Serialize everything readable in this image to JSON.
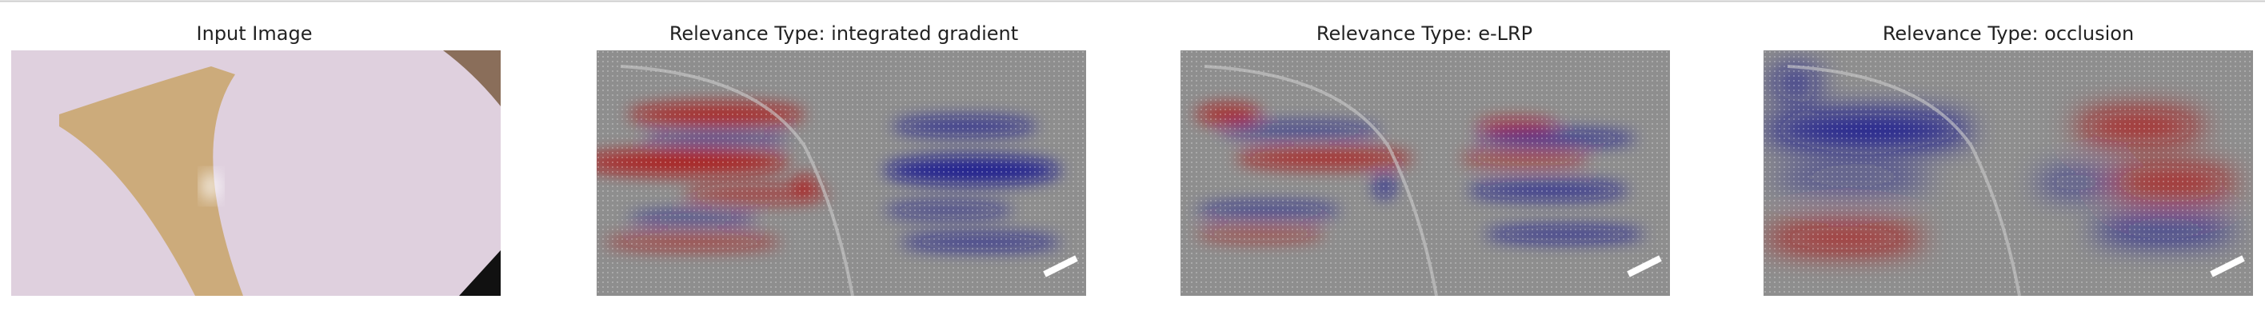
{
  "panels": [
    {
      "title": "Input Image"
    },
    {
      "title": "Relevance Type: integrated gradient"
    },
    {
      "title": "Relevance Type: e-LRP"
    },
    {
      "title": "Relevance Type: occlusion"
    }
  ]
}
